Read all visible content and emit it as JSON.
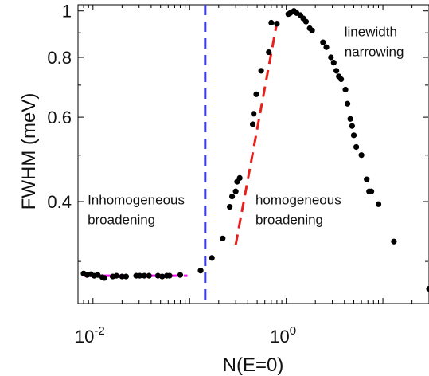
{
  "chart_data": {
    "type": "scatter",
    "xlabel": "N(E=0)",
    "ylabel": "FWHM (meV)",
    "x_scale": "log",
    "y_scale": "log",
    "xlim": [
      0.007,
      30
    ],
    "ylim": [
      0.245,
      1.03
    ],
    "x_ticks": [
      {
        "value": 0.01,
        "base": "10",
        "exp": "-2"
      },
      {
        "value": 1,
        "base": "10",
        "exp": "0"
      }
    ],
    "y_ticks": [
      {
        "value": 0.4,
        "label": "0.4"
      },
      {
        "value": 0.6,
        "label": "0.6"
      },
      {
        "value": 0.8,
        "label": "0.8"
      },
      {
        "value": 1.0,
        "label": "1"
      }
    ],
    "grid": false,
    "legend": "none",
    "points": [
      [
        0.008,
        0.283
      ],
      [
        0.0087,
        0.281
      ],
      [
        0.0095,
        0.282
      ],
      [
        0.0103,
        0.28
      ],
      [
        0.0112,
        0.281
      ],
      [
        0.0125,
        0.278
      ],
      [
        0.0131,
        0.277
      ],
      [
        0.016,
        0.279
      ],
      [
        0.0175,
        0.28
      ],
      [
        0.02,
        0.279
      ],
      [
        0.022,
        0.279
      ],
      [
        0.028,
        0.28
      ],
      [
        0.0305,
        0.28
      ],
      [
        0.034,
        0.28
      ],
      [
        0.038,
        0.28
      ],
      [
        0.047,
        0.28
      ],
      [
        0.052,
        0.279
      ],
      [
        0.058,
        0.28
      ],
      [
        0.062,
        0.28
      ],
      [
        0.08,
        0.281
      ],
      [
        0.13,
        0.287
      ],
      [
        0.17,
        0.305
      ],
      [
        0.22,
        0.335
      ],
      [
        0.26,
        0.39
      ],
      [
        0.275,
        0.41
      ],
      [
        0.3,
        0.42
      ],
      [
        0.31,
        0.44
      ],
      [
        0.33,
        0.448
      ],
      [
        0.45,
        0.58
      ],
      [
        0.46,
        0.61
      ],
      [
        0.49,
        0.67
      ],
      [
        0.55,
        0.75
      ],
      [
        0.66,
        0.82
      ],
      [
        0.7,
        0.945
      ],
      [
        0.8,
        0.94
      ],
      [
        1.05,
        0.985
      ],
      [
        1.1,
        0.99
      ],
      [
        1.2,
        1.0
      ],
      [
        1.28,
        0.99
      ],
      [
        1.4,
        0.98
      ],
      [
        1.5,
        0.965
      ],
      [
        1.6,
        0.95
      ],
      [
        1.75,
        0.92
      ],
      [
        1.85,
        0.91
      ],
      [
        2.4,
        0.86
      ],
      [
        2.6,
        0.84
      ],
      [
        2.9,
        0.8
      ],
      [
        3.1,
        0.78
      ],
      [
        3.3,
        0.75
      ],
      [
        3.5,
        0.73
      ],
      [
        3.7,
        0.72
      ],
      [
        4.1,
        0.685
      ],
      [
        4.3,
        0.64
      ],
      [
        4.6,
        0.595
      ],
      [
        4.8,
        0.575
      ],
      [
        5.0,
        0.55
      ],
      [
        5.3,
        0.52
      ],
      [
        6.0,
        0.5
      ],
      [
        6.8,
        0.445
      ],
      [
        7.2,
        0.42
      ],
      [
        7.6,
        0.42
      ],
      [
        9.0,
        0.395
      ],
      [
        13.0,
        0.33
      ],
      [
        30.0,
        0.263
      ]
    ],
    "fits": [
      {
        "color": "#ff00ff",
        "x": [
          0.008,
          0.095
        ],
        "y": [
          0.28,
          0.28
        ]
      },
      {
        "color": "#e8201c",
        "x": [
          0.3,
          0.82
        ],
        "y": [
          0.325,
          0.97
        ]
      }
    ],
    "vline": {
      "x": 0.145,
      "color": "#3a3aee"
    },
    "annotations": [
      {
        "lines": [
          "Inhomogeneous",
          "broadening"
        ],
        "x": 0.0088,
        "y": 0.395
      },
      {
        "lines": [
          "homogeneous",
          "broadening"
        ],
        "x": 0.48,
        "y": 0.395
      },
      {
        "lines": [
          "linewidth",
          "narrowing"
        ],
        "x": 4.0,
        "y": 0.885
      }
    ],
    "colors": {
      "points": "#000000",
      "axes": "#000000"
    }
  }
}
